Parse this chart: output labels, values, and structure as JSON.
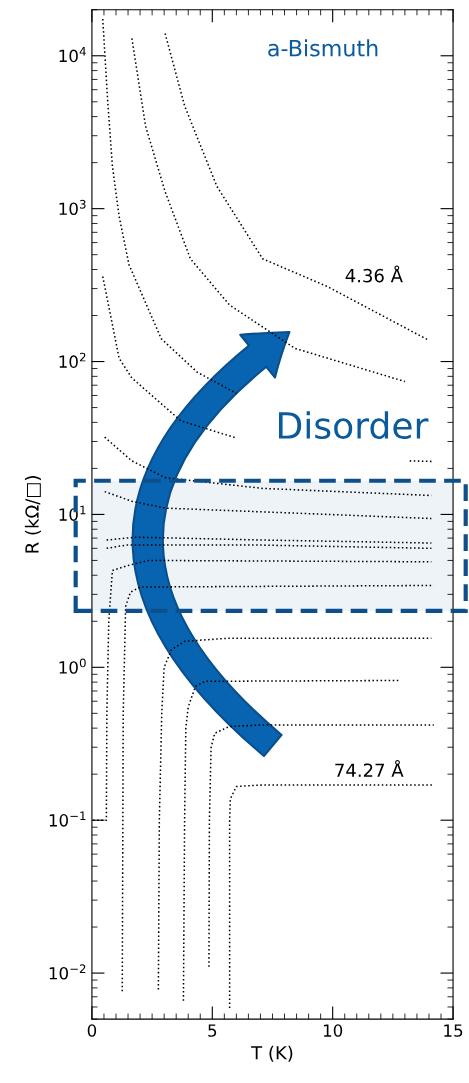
{
  "chart_data": {
    "type": "line",
    "xlabel": "T (K)",
    "ylabel": "R (kΩ/□)",
    "log": "y",
    "xlim": [
      0,
      15
    ],
    "xticks": [
      0,
      5,
      10,
      15
    ],
    "ylim": [
      0.005,
      20000
    ],
    "yticks": [
      {
        "value": 0.01,
        "label": "10$^{−2}$"
      },
      {
        "value": 0.1,
        "label": "10$^{−1}$"
      },
      {
        "value": 1,
        "label": "10$^{0}$"
      },
      {
        "value": 10,
        "label": "10$^{1}$"
      },
      {
        "value": 100,
        "label": "10$^{2}$"
      },
      {
        "value": 1000,
        "label": "10$^{3}$"
      },
      {
        "value": 10000,
        "label": "10$^{4}$"
      }
    ],
    "grid": false,
    "line_style": "dotted",
    "marker": "none",
    "bands": [
      {
        "axis": "y",
        "from": 2.34,
        "to": 16.6,
        "color": "#0d4f8b"
      }
    ],
    "series": [
      {
        "color": "#000000",
        "x": [
          3.04,
          3.85,
          5.19,
          7.09,
          9.77,
          13.98
        ],
        "values": [
          14000,
          4700,
          1400,
          470,
          310,
          138
        ]
      },
      {
        "color": "#000000",
        "x": [
          1.66,
          2.23,
          3.04,
          4.09,
          5.72,
          8.43,
          13.0
        ],
        "values": [
          13000,
          3460,
          1290,
          470,
          234,
          122,
          74
        ]
      },
      {
        "color": "#000000",
        "x": [
          0.45,
          0.65,
          0.85,
          1.13,
          1.54,
          2.88,
          4.38,
          6.0
        ],
        "values": [
          17400,
          5200,
          1900,
          890,
          430,
          141,
          85,
          62
        ]
      },
      {
        "color": "#000000",
        "x": [
          0.45,
          1.13,
          1.66,
          3.69,
          6.0,
          9.0,
          13.2,
          14.2
        ],
        "values": [
          360,
          105,
          78,
          41,
          31.6,
          null,
          22.4,
          22.2
        ]
      },
      {
        "color": "#000000",
        "x": [
          0.53,
          1.66,
          3.04,
          7.09,
          14.1
        ],
        "values": [
          32,
          22.4,
          17.4,
          14.8,
          13.3
        ]
      },
      {
        "color": "#000000",
        "x": [
          0.53,
          1.66,
          3.04,
          8.43,
          14.1
        ],
        "values": [
          14.1,
          12.2,
          11,
          10.2,
          9.4
        ]
      },
      {
        "color": "#000000",
        "x": [
          0.61,
          1.82,
          7.09,
          14.1
        ],
        "values": [
          6.8,
          7.1,
          6.8,
          6.5
        ]
      },
      {
        "color": "#000000",
        "x": [
          0.61,
          1.42,
          7.09,
          14.1
        ],
        "values": [
          6.0,
          6.3,
          6.3,
          6.0
        ]
      },
      {
        "color": "#000000",
        "x": [
          0.05,
          0.6,
          0.62,
          0.7,
          0.85,
          1.42,
          2.35,
          14.1
        ],
        "values": [
          0.1,
          0.1,
          0.5,
          2.0,
          4.3,
          4.6,
          5.0,
          4.9
        ]
      },
      {
        "color": "#000000",
        "x": [
          1.26,
          1.3,
          1.4,
          1.6,
          2.0,
          14.2
        ],
        "values": [
          0.0076,
          0.5,
          2.5,
          3.1,
          3.35,
          3.43
        ]
      },
      {
        "color": "#000000",
        "x": [
          2.76,
          2.8,
          2.9,
          3.0,
          3.3,
          3.85,
          5.7,
          14.1
        ],
        "values": [
          0.0078,
          0.1,
          0.5,
          1.0,
          1.3,
          1.48,
          1.55,
          1.55
        ]
      },
      {
        "color": "#000000",
        "x": [
          3.8,
          3.85,
          3.9,
          4.0,
          4.3,
          4.7,
          12.8
        ],
        "values": [
          0.0066,
          0.1,
          0.4,
          0.55,
          0.75,
          0.81,
          0.82
        ]
      },
      {
        "color": "#000000",
        "x": [
          4.86,
          4.88,
          4.95,
          5.1,
          5.7,
          7.1,
          14.2
        ],
        "values": [
          0.011,
          0.1,
          0.3,
          0.37,
          0.41,
          0.42,
          0.42
        ]
      },
      {
        "color": "#000000",
        "x": [
          5.72,
          5.72,
          5.75,
          6.0,
          7.1,
          14.2
        ],
        "values": [
          0.0059,
          0.1,
          0.138,
          0.166,
          0.17,
          0.17
        ]
      }
    ],
    "annotations": [
      "a-Bismuth",
      "Disorder",
      "4.36 Å",
      "74.27 Å"
    ]
  }
}
